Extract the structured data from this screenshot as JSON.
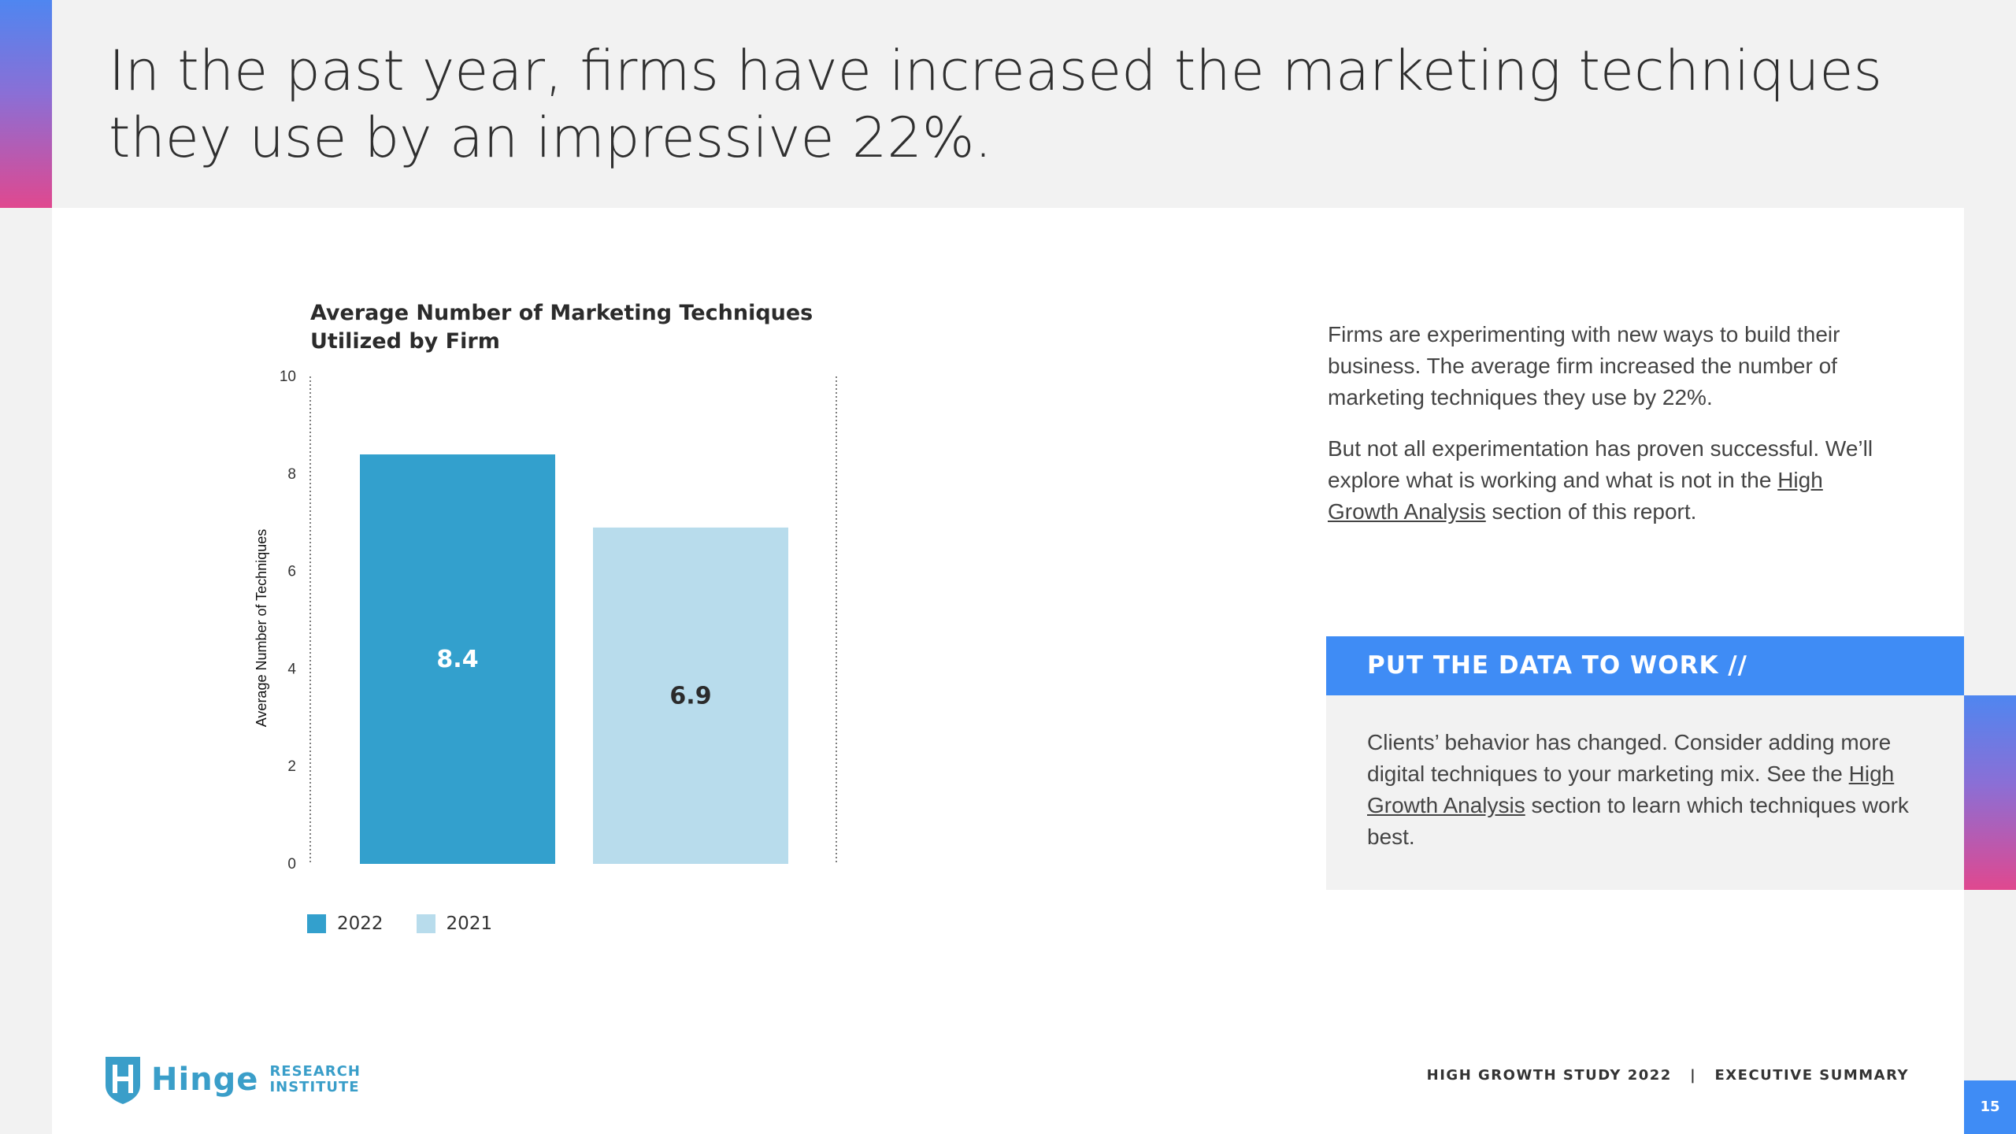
{
  "headline": "In the past year, firms have increased the marketing techniques they use by an impressive 22%.",
  "chart_data": {
    "type": "bar",
    "title": "Average Number of Marketing Techniques Utilized by Firm",
    "xlabel": "",
    "ylabel": "Average Number of Techniques",
    "ylim": [
      0,
      10
    ],
    "yticks": [
      0,
      2,
      4,
      6,
      8,
      10
    ],
    "categories": [
      "2022",
      "2021"
    ],
    "values": [
      8.4,
      6.9
    ],
    "data_labels": [
      "8.4",
      "6.9"
    ],
    "legend": [
      "2022",
      "2021"
    ],
    "legend_position": "bottom-left",
    "grid": false,
    "colors": [
      "#33a0cd",
      "#b8dcec"
    ],
    "label_colors": [
      "#ffffff",
      "#2b2b2b"
    ]
  },
  "text": {
    "para1": "Firms are experimenting with new ways to build their business. The average firm increased the number of marketing techniques they use by 22%.",
    "para2_pre": "But not all experimentation has proven successful. We’ll explore what is working and what is not in the ",
    "para2_link": "High Growth Analysis",
    "para2_post": " section of this report."
  },
  "cta": {
    "header": "PUT THE DATA TO WORK  //",
    "body_pre": "Clients’ behavior has changed. Consider adding more digital techniques to your marketing mix. See the ",
    "body_link": "High Growth Analysis",
    "body_post": " section to learn which techniques work best."
  },
  "footer": {
    "logo_word": "Hinge",
    "logo_line1": "RESEARCH",
    "logo_line2": "INSTITUTE",
    "study": "HIGH GROWTH STUDY 2022   |   EXECUTIVE SUMMARY",
    "page_number": "15"
  },
  "colors": {
    "accent_blue": "#3f8cf5",
    "gradient_pink": "#e0488f"
  }
}
